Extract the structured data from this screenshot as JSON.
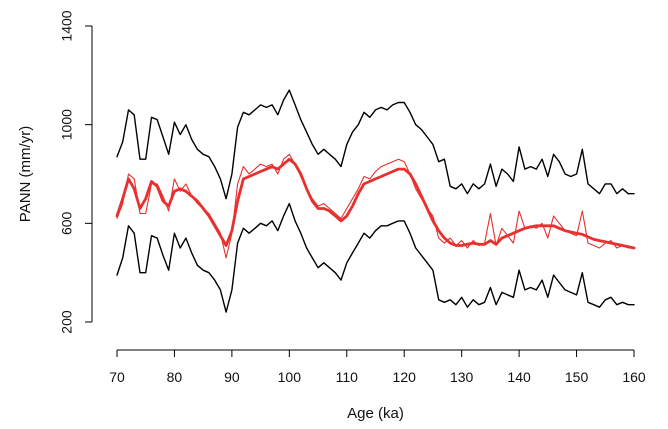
{
  "chart_data": {
    "type": "line",
    "title": "",
    "xlabel": "Age (ka)",
    "ylabel": "PANN (mm/yr)",
    "xlim": [
      70,
      160
    ],
    "ylim": [
      200,
      1400
    ],
    "x_ticks": [
      70,
      80,
      90,
      100,
      110,
      120,
      130,
      140,
      150,
      160
    ],
    "y_ticks": [
      200,
      600,
      1000,
      1400
    ],
    "grid": false,
    "legend": "none",
    "colors": {
      "upper": "#000000",
      "lower": "#000000",
      "raw": "#e8302e",
      "smooth": "#e8302e"
    },
    "series": [
      {
        "id": "upper",
        "x": [
          70,
          71,
          72,
          73,
          74,
          75,
          76,
          77,
          78,
          79,
          80,
          81,
          82,
          83,
          84,
          85,
          86,
          87,
          88,
          89,
          90,
          91,
          92,
          93,
          94,
          95,
          96,
          97,
          98,
          99,
          100,
          101,
          102,
          103,
          104,
          105,
          106,
          107,
          108,
          109,
          110,
          111,
          112,
          113,
          114,
          115,
          116,
          117,
          118,
          119,
          120,
          121,
          122,
          123,
          124,
          125,
          126,
          127,
          128,
          129,
          130,
          131,
          132,
          133,
          134,
          135,
          136,
          137,
          138,
          139,
          140,
          141,
          142,
          143,
          144,
          145,
          146,
          147,
          148,
          149,
          150,
          151,
          152,
          153,
          154,
          155,
          156,
          157,
          158,
          159,
          160
        ],
        "y": [
          870,
          930,
          1060,
          1040,
          860,
          860,
          1030,
          1020,
          950,
          880,
          1010,
          960,
          1000,
          940,
          900,
          880,
          870,
          830,
          780,
          700,
          800,
          990,
          1050,
          1040,
          1060,
          1080,
          1070,
          1080,
          1040,
          1100,
          1140,
          1080,
          1020,
          970,
          920,
          880,
          900,
          880,
          860,
          830,
          920,
          970,
          1000,
          1050,
          1030,
          1060,
          1070,
          1060,
          1080,
          1090,
          1090,
          1050,
          1000,
          980,
          950,
          920,
          850,
          860,
          750,
          740,
          760,
          720,
          760,
          740,
          760,
          840,
          750,
          820,
          800,
          770,
          910,
          820,
          830,
          820,
          860,
          790,
          880,
          850,
          800,
          790,
          800,
          900,
          760,
          740,
          720,
          760,
          760,
          720,
          740,
          720,
          720
        ],
        "stroke_width": 1.4
      },
      {
        "id": "lower",
        "x": [
          70,
          71,
          72,
          73,
          74,
          75,
          76,
          77,
          78,
          79,
          80,
          81,
          82,
          83,
          84,
          85,
          86,
          87,
          88,
          89,
          90,
          91,
          92,
          93,
          94,
          95,
          96,
          97,
          98,
          99,
          100,
          101,
          102,
          103,
          104,
          105,
          106,
          107,
          108,
          109,
          110,
          111,
          112,
          113,
          114,
          115,
          116,
          117,
          118,
          119,
          120,
          121,
          122,
          123,
          124,
          125,
          126,
          127,
          128,
          129,
          130,
          131,
          132,
          133,
          134,
          135,
          136,
          137,
          138,
          139,
          140,
          141,
          142,
          143,
          144,
          145,
          146,
          147,
          148,
          149,
          150,
          151,
          152,
          153,
          154,
          155,
          156,
          157,
          158,
          159,
          160
        ],
        "y": [
          390,
          460,
          590,
          560,
          400,
          400,
          550,
          540,
          470,
          410,
          560,
          500,
          540,
          480,
          430,
          410,
          400,
          370,
          330,
          240,
          330,
          520,
          580,
          560,
          580,
          600,
          590,
          610,
          570,
          630,
          680,
          610,
          560,
          500,
          460,
          420,
          440,
          420,
          400,
          370,
          440,
          480,
          520,
          560,
          540,
          570,
          590,
          590,
          600,
          610,
          610,
          560,
          500,
          470,
          440,
          410,
          290,
          280,
          290,
          270,
          300,
          260,
          290,
          270,
          280,
          340,
          270,
          320,
          310,
          300,
          410,
          330,
          340,
          330,
          370,
          300,
          390,
          360,
          330,
          320,
          310,
          400,
          280,
          270,
          260,
          290,
          300,
          270,
          280,
          270,
          270
        ],
        "stroke_width": 1.4
      },
      {
        "id": "raw",
        "x": [
          70,
          71,
          72,
          73,
          74,
          75,
          76,
          77,
          78,
          79,
          80,
          81,
          82,
          83,
          84,
          85,
          86,
          87,
          88,
          89,
          90,
          91,
          92,
          93,
          94,
          95,
          96,
          97,
          98,
          99,
          100,
          101,
          102,
          103,
          104,
          105,
          106,
          107,
          108,
          109,
          110,
          111,
          112,
          113,
          114,
          115,
          116,
          117,
          118,
          119,
          120,
          121,
          122,
          123,
          124,
          125,
          126,
          127,
          128,
          129,
          130,
          131,
          132,
          133,
          134,
          135,
          136,
          137,
          138,
          139,
          140,
          141,
          142,
          143,
          144,
          145,
          146,
          147,
          148,
          149,
          150,
          151,
          152,
          153,
          154,
          155,
          156,
          157,
          158,
          159,
          160
        ],
        "y": [
          620,
          680,
          800,
          780,
          640,
          640,
          760,
          760,
          710,
          650,
          780,
          730,
          760,
          710,
          680,
          660,
          640,
          600,
          560,
          460,
          560,
          760,
          830,
          800,
          820,
          840,
          830,
          840,
          800,
          860,
          880,
          840,
          790,
          740,
          700,
          670,
          680,
          660,
          640,
          620,
          660,
          700,
          740,
          790,
          780,
          810,
          830,
          840,
          850,
          860,
          850,
          800,
          740,
          700,
          660,
          630,
          540,
          520,
          540,
          510,
          530,
          500,
          530,
          510,
          520,
          640,
          510,
          580,
          550,
          520,
          650,
          580,
          590,
          580,
          600,
          540,
          630,
          600,
          570,
          560,
          550,
          650,
          520,
          510,
          500,
          520,
          530,
          500,
          510,
          500,
          500
        ],
        "stroke_width": 1.1
      },
      {
        "id": "smooth",
        "x": [
          70,
          71,
          72,
          73,
          74,
          75,
          76,
          77,
          78,
          79,
          80,
          81,
          82,
          83,
          84,
          85,
          86,
          87,
          88,
          89,
          90,
          91,
          92,
          93,
          94,
          95,
          96,
          97,
          98,
          99,
          100,
          101,
          102,
          103,
          104,
          105,
          106,
          107,
          108,
          109,
          110,
          111,
          112,
          113,
          114,
          115,
          116,
          117,
          118,
          119,
          120,
          121,
          122,
          123,
          124,
          125,
          126,
          127,
          128,
          129,
          130,
          131,
          132,
          133,
          134,
          135,
          136,
          137,
          138,
          139,
          140,
          141,
          142,
          143,
          144,
          145,
          146,
          147,
          148,
          149,
          150,
          151,
          152,
          153,
          154,
          155,
          156,
          157,
          158,
          159,
          160
        ],
        "y": [
          630,
          700,
          780,
          740,
          660,
          700,
          770,
          750,
          690,
          670,
          730,
          740,
          730,
          710,
          690,
          660,
          630,
          590,
          550,
          510,
          570,
          690,
          780,
          790,
          800,
          810,
          820,
          830,
          820,
          840,
          860,
          840,
          800,
          740,
          690,
          660,
          660,
          650,
          630,
          610,
          630,
          670,
          720,
          760,
          770,
          780,
          790,
          800,
          810,
          820,
          820,
          800,
          760,
          710,
          660,
          610,
          570,
          540,
          520,
          510,
          510,
          515,
          520,
          515,
          515,
          530,
          515,
          540,
          550,
          560,
          570,
          580,
          585,
          590,
          590,
          590,
          590,
          580,
          570,
          565,
          560,
          555,
          545,
          535,
          530,
          525,
          520,
          515,
          510,
          505,
          500
        ],
        "stroke_width": 2.8
      }
    ]
  }
}
